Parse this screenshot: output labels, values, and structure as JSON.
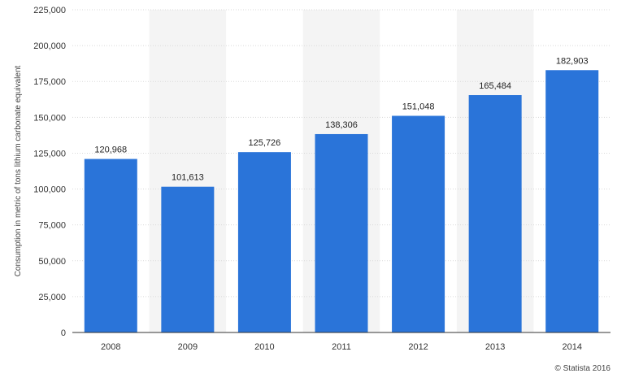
{
  "chart_data": {
    "type": "bar",
    "title": "",
    "xlabel": "",
    "ylabel": "Consumption in metric of tons lithium carbonate equivalent",
    "categories": [
      "2008",
      "2009",
      "2010",
      "2011",
      "2012",
      "2013",
      "2014"
    ],
    "values": [
      120968,
      101613,
      125726,
      138306,
      151048,
      165484,
      182903
    ],
    "data_labels": [
      "120,968",
      "101,613",
      "125,726",
      "138,306",
      "151,048",
      "165,484",
      "182,903"
    ],
    "yticks": [
      "0",
      "25,000",
      "50,000",
      "75,000",
      "100,000",
      "125,000",
      "150,000",
      "175,000",
      "200,000",
      "225,000"
    ],
    "ylim": [
      0,
      225000
    ],
    "grid": true,
    "bar_color": "#2a74d9",
    "alt_band_color": "#f4f4f4"
  },
  "credit": "© Statista 2016"
}
